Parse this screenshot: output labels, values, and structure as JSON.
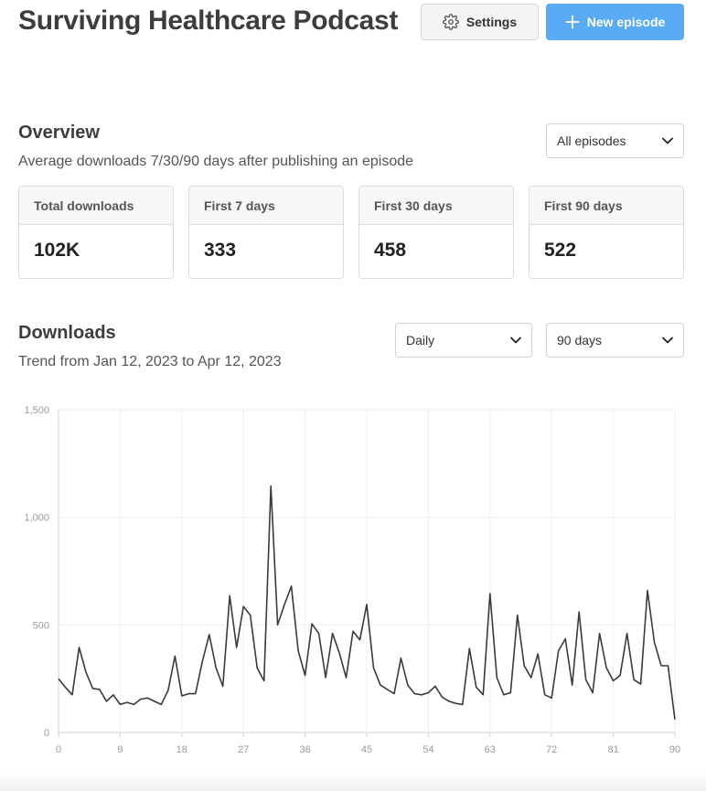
{
  "header": {
    "title": "Surviving Healthcare Podcast",
    "settings_label": "Settings",
    "settings_icon": "gear-icon",
    "new_episode_label": "New episode",
    "new_episode_icon": "plus-icon"
  },
  "overview": {
    "title": "Overview",
    "subtitle": "Average downloads 7/30/90 days after publishing an episode",
    "episode_filter": "All episodes",
    "cards": [
      {
        "label": "Total downloads",
        "value": "102K"
      },
      {
        "label": "First 7 days",
        "value": "333"
      },
      {
        "label": "First 30 days",
        "value": "458"
      },
      {
        "label": "First 90 days",
        "value": "522"
      }
    ]
  },
  "downloads": {
    "title": "Downloads",
    "subtitle": "Trend from Jan 12, 2023 to Apr 12, 2023",
    "interval": "Daily",
    "range": "90 days"
  },
  "chart_data": {
    "type": "line",
    "ylim": [
      0,
      1500
    ],
    "xlim": [
      0,
      90
    ],
    "y_ticks": [
      0,
      500,
      1000,
      1500
    ],
    "y_tick_labels": [
      "0",
      "500",
      "1,000",
      "1,500"
    ],
    "x_ticks": [
      0,
      9,
      18,
      27,
      36,
      45,
      54,
      63,
      72,
      81,
      90
    ],
    "x_tick_labels": [
      "0",
      "9",
      "18",
      "27",
      "36",
      "45",
      "54",
      "63",
      "72",
      "81",
      "90"
    ],
    "grid": true,
    "color": "#3a3a3a",
    "x": [
      0,
      1,
      2,
      3,
      4,
      5,
      6,
      7,
      8,
      9,
      10,
      11,
      12,
      13,
      14,
      15,
      16,
      17,
      18,
      19,
      20,
      21,
      22,
      23,
      24,
      25,
      26,
      27,
      28,
      29,
      30,
      31,
      32,
      33,
      34,
      35,
      36,
      37,
      38,
      39,
      40,
      41,
      42,
      43,
      44,
      45,
      46,
      47,
      48,
      49,
      50,
      51,
      52,
      53,
      54,
      55,
      56,
      57,
      58,
      59,
      60,
      61,
      62,
      63,
      64,
      65,
      66,
      67,
      68,
      69,
      70,
      71,
      72,
      73,
      74,
      75,
      76,
      77,
      78,
      79,
      80,
      81,
      82,
      83,
      84,
      85,
      86,
      87,
      88,
      89,
      90
    ],
    "values": [
      250,
      210,
      175,
      395,
      280,
      205,
      200,
      145,
      175,
      130,
      140,
      130,
      155,
      160,
      145,
      130,
      195,
      355,
      170,
      180,
      180,
      330,
      455,
      300,
      215,
      635,
      395,
      585,
      545,
      300,
      240,
      1145,
      500,
      595,
      680,
      380,
      265,
      505,
      460,
      255,
      460,
      370,
      255,
      470,
      430,
      595,
      300,
      220,
      200,
      180,
      345,
      220,
      180,
      175,
      185,
      215,
      165,
      145,
      135,
      130,
      390,
      210,
      175,
      645,
      255,
      175,
      185,
      545,
      310,
      255,
      365,
      175,
      160,
      380,
      435,
      220,
      560,
      245,
      185,
      460,
      300,
      240,
      265,
      460,
      245,
      225,
      660,
      420,
      310,
      310,
      60
    ]
  }
}
